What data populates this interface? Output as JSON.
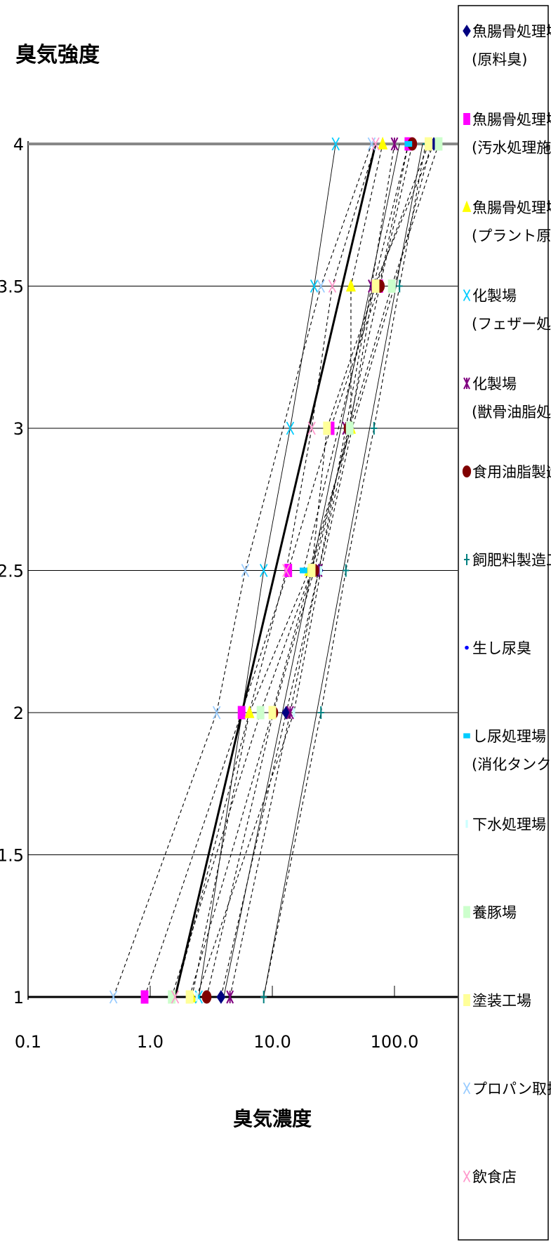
{
  "chart_data": {
    "type": "scatter",
    "title": "",
    "ylabel": "臭気強度",
    "xlabel": "臭気濃度",
    "xscale": "log",
    "xlim": [
      0.1,
      350
    ],
    "ylim": [
      1,
      4
    ],
    "x_ticks": [
      "0.1",
      "1.0",
      "10.0",
      "100.0"
    ],
    "y_ticks": [
      "1",
      "1.5",
      "2",
      "2.5",
      "3",
      "3.5",
      "4"
    ],
    "grid": "horizontal",
    "legend_position": "right",
    "series": [
      {
        "name": [
          "魚腸骨処理場",
          "(原料臭)"
        ],
        "color": "#000080",
        "marker": "diamond",
        "line": "dash",
        "points": [
          [
            3.8,
            1
          ],
          [
            13,
            2
          ],
          [
            24,
            2.5
          ],
          [
            43,
            3
          ],
          [
            68,
            3.5
          ],
          [
            210,
            4
          ]
        ]
      },
      {
        "name": [
          "魚腸骨処理場",
          "(汚水処理施設原臭)"
        ],
        "color": "#ff00ff",
        "marker": "square",
        "line": "dash",
        "points": [
          [
            0.9,
            1
          ],
          [
            5.6,
            2
          ],
          [
            13.5,
            2.5
          ],
          [
            30,
            3
          ],
          [
            75,
            3.5
          ],
          [
            130,
            4
          ]
        ]
      },
      {
        "name": [
          "魚腸骨処理場",
          "(プラント原臭)"
        ],
        "color": "#ffff00",
        "marker": "triangle",
        "line": "dash",
        "points": [
          [
            2.2,
            1
          ],
          [
            6.5,
            2
          ],
          [
            20,
            2.5
          ],
          [
            44,
            3
          ],
          [
            44,
            3.5
          ],
          [
            80,
            4
          ]
        ]
      },
      {
        "name": [
          "化製場",
          "(フェザー処理)"
        ],
        "color": "#00ccff",
        "marker": "x",
        "line": "solid-thin",
        "points": [
          [
            2.5,
            1
          ],
          [
            8.5,
            2.5
          ],
          [
            14,
            3
          ],
          [
            22,
            3.5
          ],
          [
            33,
            4
          ]
        ]
      },
      {
        "name": [
          "化製場",
          "(獣骨油脂処理)"
        ],
        "color": "#800080",
        "marker": "asterisk",
        "line": "dash",
        "points": [
          [
            4.5,
            1
          ],
          [
            14,
            2
          ],
          [
            24,
            2.5
          ],
          [
            40,
            3
          ],
          [
            65,
            3.5
          ],
          [
            100,
            4
          ]
        ]
      },
      {
        "name": [
          "食用油脂製造工場"
        ],
        "color": "#800000",
        "marker": "circle",
        "line": "dash",
        "points": [
          [
            2.9,
            1
          ],
          [
            10.2,
            2
          ],
          [
            22,
            2.5
          ],
          [
            42,
            3
          ],
          [
            76,
            3.5
          ],
          [
            140,
            4
          ]
        ]
      },
      {
        "name": [
          "飼肥料製造工場"
        ],
        "color": "#008080",
        "marker": "plus",
        "line": "dash",
        "points": [
          [
            8.5,
            1
          ],
          [
            25,
            2
          ],
          [
            40,
            2.5
          ],
          [
            68,
            3
          ],
          [
            110,
            3.5
          ],
          [
            180,
            4
          ]
        ]
      },
      {
        "name": [
          "生し尿臭"
        ],
        "color": "#0000ff",
        "marker": "dot",
        "line": "none",
        "points": []
      },
      {
        "name": [
          "し尿処理場",
          "(消化タンク付近)"
        ],
        "color": "#00ccff",
        "marker": "square-small",
        "line": "dash",
        "points": [
          [
            18,
            2.5
          ],
          [
            130,
            4
          ]
        ]
      },
      {
        "name": [
          "下水処理場"
        ],
        "color": "#ccffff",
        "marker": "dash",
        "line": "dash",
        "points": [
          [
            2.4,
            1
          ],
          [
            15,
            2
          ],
          [
            25,
            2.5
          ],
          [
            45,
            3
          ],
          [
            100,
            3.5
          ],
          [
            200,
            4
          ]
        ]
      },
      {
        "name": [
          "養豚場"
        ],
        "color": "#ccffcc",
        "marker": "square",
        "line": "dash",
        "points": [
          [
            1.5,
            1
          ],
          [
            8,
            2
          ],
          [
            21,
            2.5
          ],
          [
            43,
            3
          ],
          [
            95,
            3.5
          ],
          [
            230,
            4
          ]
        ]
      },
      {
        "name": [
          "塗装工場"
        ],
        "color": "#ffff99",
        "marker": "square",
        "line": "dash",
        "points": [
          [
            2.1,
            1
          ],
          [
            10,
            2
          ],
          [
            21,
            2.5
          ],
          [
            28,
            3
          ],
          [
            70,
            3.5
          ],
          [
            190,
            4
          ]
        ]
      },
      {
        "name": [
          "プロパン取扱所"
        ],
        "color": "#99ccff",
        "marker": "x",
        "line": "dash",
        "points": [
          [
            0.5,
            1
          ],
          [
            3.5,
            2
          ],
          [
            6,
            2.5
          ],
          [
            25,
            3.5
          ],
          [
            65,
            4
          ]
        ]
      },
      {
        "name": [
          "飲食店"
        ],
        "color": "#ff99cc",
        "marker": "x",
        "line": "dash",
        "points": [
          [
            1.6,
            1
          ],
          [
            13,
            2.5
          ],
          [
            21,
            3
          ],
          [
            31,
            3.5
          ],
          [
            70,
            4
          ]
        ]
      }
    ],
    "extra_lines": [
      {
        "style": "bold",
        "points": [
          [
            1.6,
            1
          ],
          [
            70,
            4
          ]
        ]
      },
      {
        "style": "solid-thin",
        "points": [
          [
            4,
            1
          ],
          [
            110,
            4
          ]
        ]
      },
      {
        "style": "solid-thin",
        "points": [
          [
            8.5,
            1
          ],
          [
            170,
            4
          ]
        ]
      }
    ]
  }
}
